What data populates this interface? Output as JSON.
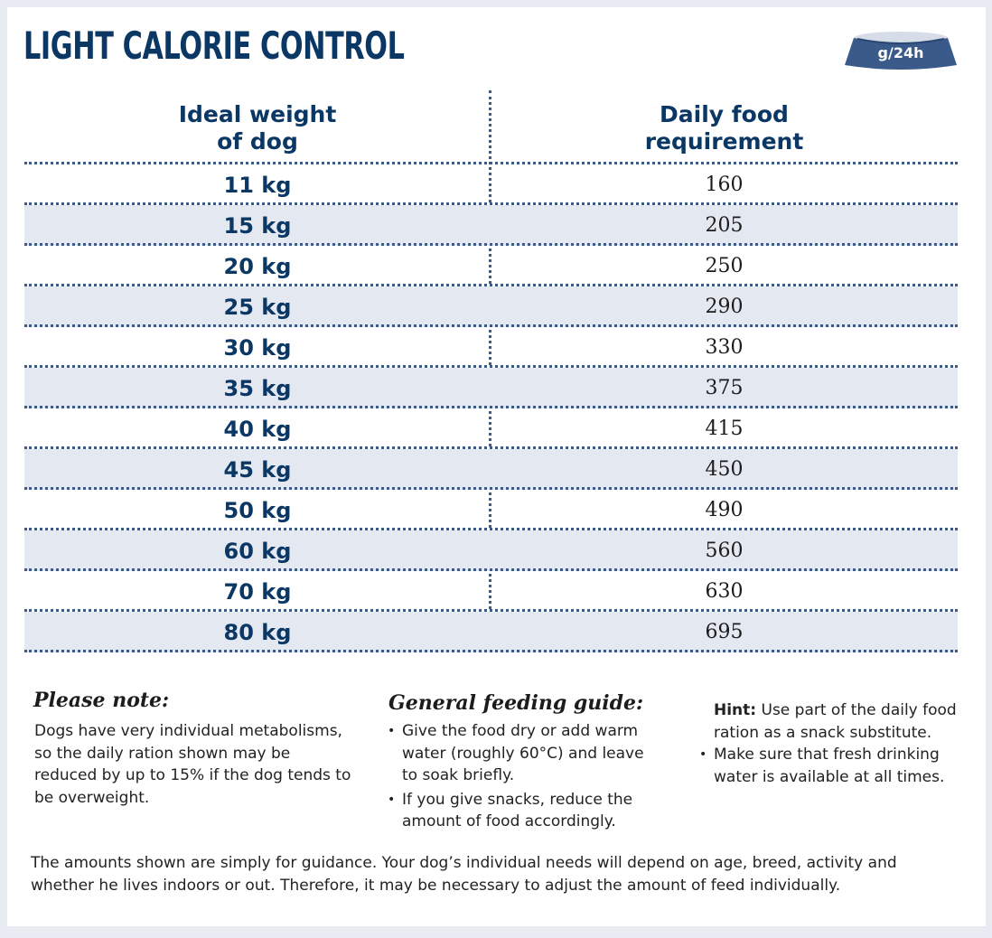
{
  "title": "LIGHT CALORIE CONTROL",
  "bowl_label": "g/24h",
  "colors": {
    "accent": "#0b3765",
    "bowl": "#3a5a8a",
    "stripe": "#e4e8f1"
  },
  "table": {
    "headers": {
      "weight_line1": "Ideal weight",
      "weight_line2": "of dog",
      "food_line1": "Daily food",
      "food_line2": "requirement"
    },
    "rows": [
      {
        "weight": "11 kg",
        "food": "160"
      },
      {
        "weight": "15 kg",
        "food": "205"
      },
      {
        "weight": "20 kg",
        "food": "250"
      },
      {
        "weight": "25 kg",
        "food": "290"
      },
      {
        "weight": "30 kg",
        "food": "330"
      },
      {
        "weight": "35 kg",
        "food": "375"
      },
      {
        "weight": "40 kg",
        "food": "415"
      },
      {
        "weight": "45 kg",
        "food": "450"
      },
      {
        "weight": "50 kg",
        "food": "490"
      },
      {
        "weight": "60 kg",
        "food": "560"
      },
      {
        "weight": "70 kg",
        "food": "630"
      },
      {
        "weight": "80 kg",
        "food": "695"
      }
    ]
  },
  "please_note": {
    "title": "Please note:",
    "text": "Dogs have very individual metabolisms, so the daily ration shown may be reduced by up to 15% if the dog tends to be overweight."
  },
  "feeding_guide": {
    "title": "General feeding guide:",
    "items": [
      "Give the food dry or add warm water (roughly 60°C) and leave to soak briefly.",
      "If you give snacks, reduce the amount of food accordingly."
    ]
  },
  "hint": {
    "label": "Hint:",
    "text": "Use part of the daily food ration as a snack substitute.",
    "items": [
      "Make sure that fresh drinking water is available at all times."
    ]
  },
  "footer": "The amounts shown are simply for guidance. Your dog’s individual needs will depend on age, breed, activity and whether he lives indoors or out. Therefore, it may be necessary to adjust the amount of feed individually."
}
